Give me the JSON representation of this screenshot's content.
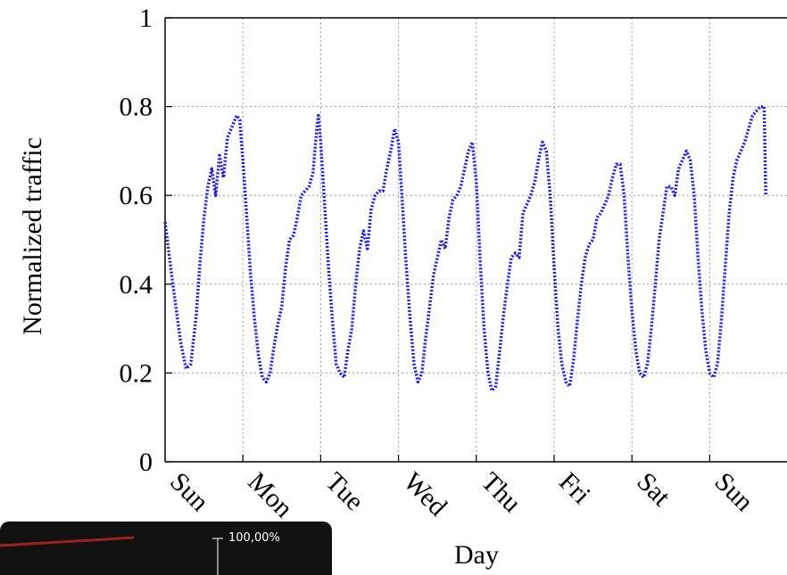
{
  "chart_data": {
    "type": "line",
    "title": "",
    "xlabel": "Day",
    "ylabel": "Normalized traffic",
    "x_categories": [
      "Sun",
      "Mon",
      "Tue",
      "Wed",
      "Thu",
      "Fri",
      "Sat",
      "Sun"
    ],
    "xlim": [
      0,
      8
    ],
    "ylim": [
      0,
      1
    ],
    "y_ticks": [
      "0",
      "0.2",
      "0.4",
      "0.6",
      "0.8",
      "1"
    ],
    "grid": true,
    "line_color": "#1a1aff",
    "line_style": "dotted",
    "series": [
      {
        "values": [
          [
            0.0,
            0.54
          ],
          [
            0.1,
            0.4
          ],
          [
            0.2,
            0.27
          ],
          [
            0.27,
            0.21
          ],
          [
            0.33,
            0.22
          ],
          [
            0.4,
            0.33
          ],
          [
            0.45,
            0.45
          ],
          [
            0.5,
            0.55
          ],
          [
            0.55,
            0.62
          ],
          [
            0.6,
            0.66
          ],
          [
            0.65,
            0.6
          ],
          [
            0.7,
            0.69
          ],
          [
            0.75,
            0.64
          ],
          [
            0.8,
            0.73
          ],
          [
            0.85,
            0.75
          ],
          [
            0.92,
            0.78
          ],
          [
            0.96,
            0.77
          ],
          [
            1.0,
            0.68
          ],
          [
            1.05,
            0.55
          ],
          [
            1.1,
            0.42
          ],
          [
            1.15,
            0.32
          ],
          [
            1.2,
            0.24
          ],
          [
            1.25,
            0.19
          ],
          [
            1.3,
            0.18
          ],
          [
            1.35,
            0.2
          ],
          [
            1.4,
            0.26
          ],
          [
            1.45,
            0.31
          ],
          [
            1.5,
            0.35
          ],
          [
            1.55,
            0.44
          ],
          [
            1.6,
            0.5
          ],
          [
            1.65,
            0.51
          ],
          [
            1.7,
            0.55
          ],
          [
            1.75,
            0.6
          ],
          [
            1.8,
            0.61
          ],
          [
            1.85,
            0.62
          ],
          [
            1.9,
            0.65
          ],
          [
            1.95,
            0.75
          ],
          [
            1.97,
            0.78
          ],
          [
            2.0,
            0.72
          ],
          [
            2.05,
            0.58
          ],
          [
            2.1,
            0.44
          ],
          [
            2.15,
            0.32
          ],
          [
            2.2,
            0.22
          ],
          [
            2.25,
            0.2
          ],
          [
            2.3,
            0.19
          ],
          [
            2.35,
            0.25
          ],
          [
            2.4,
            0.3
          ],
          [
            2.45,
            0.4
          ],
          [
            2.5,
            0.48
          ],
          [
            2.55,
            0.52
          ],
          [
            2.6,
            0.48
          ],
          [
            2.65,
            0.57
          ],
          [
            2.7,
            0.6
          ],
          [
            2.75,
            0.61
          ],
          [
            2.8,
            0.61
          ],
          [
            2.85,
            0.66
          ],
          [
            2.9,
            0.7
          ],
          [
            2.95,
            0.75
          ],
          [
            3.0,
            0.72
          ],
          [
            3.05,
            0.58
          ],
          [
            3.1,
            0.44
          ],
          [
            3.15,
            0.32
          ],
          [
            3.2,
            0.22
          ],
          [
            3.25,
            0.18
          ],
          [
            3.3,
            0.2
          ],
          [
            3.35,
            0.28
          ],
          [
            3.4,
            0.35
          ],
          [
            3.45,
            0.42
          ],
          [
            3.5,
            0.46
          ],
          [
            3.55,
            0.5
          ],
          [
            3.6,
            0.48
          ],
          [
            3.65,
            0.55
          ],
          [
            3.7,
            0.59
          ],
          [
            3.75,
            0.6
          ],
          [
            3.8,
            0.62
          ],
          [
            3.85,
            0.66
          ],
          [
            3.9,
            0.7
          ],
          [
            3.95,
            0.72
          ],
          [
            4.0,
            0.63
          ],
          [
            4.05,
            0.45
          ],
          [
            4.1,
            0.3
          ],
          [
            4.15,
            0.2
          ],
          [
            4.2,
            0.16
          ],
          [
            4.25,
            0.17
          ],
          [
            4.3,
            0.25
          ],
          [
            4.35,
            0.33
          ],
          [
            4.4,
            0.4
          ],
          [
            4.45,
            0.46
          ],
          [
            4.5,
            0.47
          ],
          [
            4.55,
            0.46
          ],
          [
            4.6,
            0.56
          ],
          [
            4.65,
            0.58
          ],
          [
            4.7,
            0.6
          ],
          [
            4.75,
            0.63
          ],
          [
            4.8,
            0.68
          ],
          [
            4.85,
            0.72
          ],
          [
            4.9,
            0.7
          ],
          [
            4.95,
            0.6
          ],
          [
            5.0,
            0.44
          ],
          [
            5.05,
            0.3
          ],
          [
            5.1,
            0.22
          ],
          [
            5.15,
            0.18
          ],
          [
            5.2,
            0.17
          ],
          [
            5.25,
            0.23
          ],
          [
            5.3,
            0.32
          ],
          [
            5.35,
            0.4
          ],
          [
            5.4,
            0.46
          ],
          [
            5.45,
            0.49
          ],
          [
            5.5,
            0.5
          ],
          [
            5.55,
            0.55
          ],
          [
            5.6,
            0.56
          ],
          [
            5.65,
            0.58
          ],
          [
            5.7,
            0.6
          ],
          [
            5.75,
            0.64
          ],
          [
            5.8,
            0.67
          ],
          [
            5.85,
            0.67
          ],
          [
            5.9,
            0.6
          ],
          [
            5.95,
            0.46
          ],
          [
            6.0,
            0.34
          ],
          [
            6.05,
            0.25
          ],
          [
            6.1,
            0.2
          ],
          [
            6.15,
            0.19
          ],
          [
            6.2,
            0.22
          ],
          [
            6.25,
            0.3
          ],
          [
            6.3,
            0.4
          ],
          [
            6.35,
            0.5
          ],
          [
            6.4,
            0.56
          ],
          [
            6.45,
            0.62
          ],
          [
            6.5,
            0.62
          ],
          [
            6.55,
            0.6
          ],
          [
            6.6,
            0.66
          ],
          [
            6.65,
            0.68
          ],
          [
            6.7,
            0.7
          ],
          [
            6.75,
            0.68
          ],
          [
            6.8,
            0.6
          ],
          [
            6.85,
            0.46
          ],
          [
            6.9,
            0.34
          ],
          [
            6.95,
            0.25
          ],
          [
            7.0,
            0.2
          ],
          [
            7.05,
            0.19
          ],
          [
            7.1,
            0.22
          ],
          [
            7.15,
            0.32
          ],
          [
            7.2,
            0.44
          ],
          [
            7.25,
            0.56
          ],
          [
            7.3,
            0.64
          ],
          [
            7.35,
            0.68
          ],
          [
            7.4,
            0.7
          ],
          [
            7.45,
            0.72
          ],
          [
            7.5,
            0.75
          ],
          [
            7.55,
            0.78
          ],
          [
            7.6,
            0.79
          ],
          [
            7.65,
            0.8
          ],
          [
            7.7,
            0.8
          ],
          [
            7.72,
            0.6
          ]
        ]
      }
    ]
  },
  "inset": {
    "label": "100,00%"
  }
}
